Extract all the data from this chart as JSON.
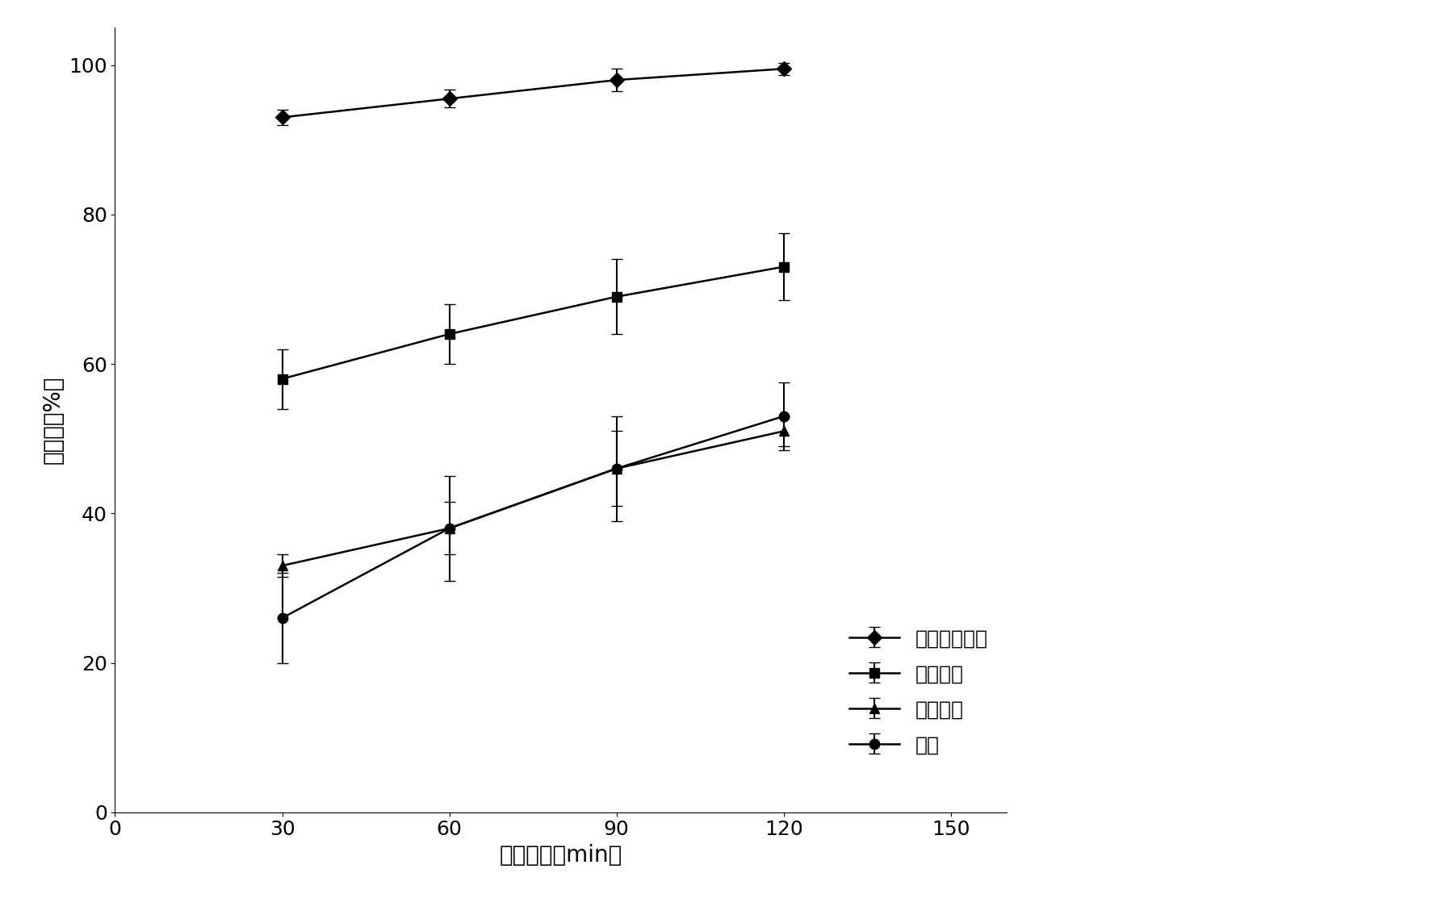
{
  "x": [
    30,
    60,
    90,
    120
  ],
  "series": [
    {
      "label": "本发明催化剂",
      "y": [
        93,
        95.5,
        98,
        99.5
      ],
      "yerr": [
        1.0,
        1.2,
        1.5,
        0.8
      ],
      "marker": "D",
      "linestyle": "-",
      "color": "#000000"
    },
    {
      "label": "氧化亚铜",
      "y": [
        58,
        64,
        69,
        73
      ],
      "yerr": [
        4.0,
        4.0,
        5.0,
        4.5
      ],
      "marker": "s",
      "linestyle": "-",
      "color": "#000000"
    },
    {
      "label": "镀铜鐵屑",
      "y": [
        33,
        38,
        46,
        51
      ],
      "yerr": [
        1.5,
        3.5,
        5.0,
        2.0
      ],
      "marker": "^",
      "linestyle": "-",
      "color": "#000000"
    },
    {
      "label": "鐵粉",
      "y": [
        26,
        38,
        46,
        53
      ],
      "yerr": [
        6.0,
        7.0,
        7.0,
        4.5
      ],
      "marker": "o",
      "linestyle": "-",
      "color": "#000000"
    }
  ],
  "xlabel": "反应时间（min）",
  "ylabel": "去除率（%）",
  "xlim": [
    0,
    160
  ],
  "ylim": [
    0,
    105
  ],
  "xticks": [
    0,
    30,
    60,
    90,
    120,
    150
  ],
  "yticks": [
    0,
    20,
    40,
    60,
    80,
    100
  ],
  "legend_fontsize": 18,
  "axis_label_fontsize": 20,
  "tick_fontsize": 18,
  "background_color": "#ffffff",
  "markersize": 9,
  "linewidth": 1.8,
  "capsize": 5,
  "elinewidth": 1.5
}
